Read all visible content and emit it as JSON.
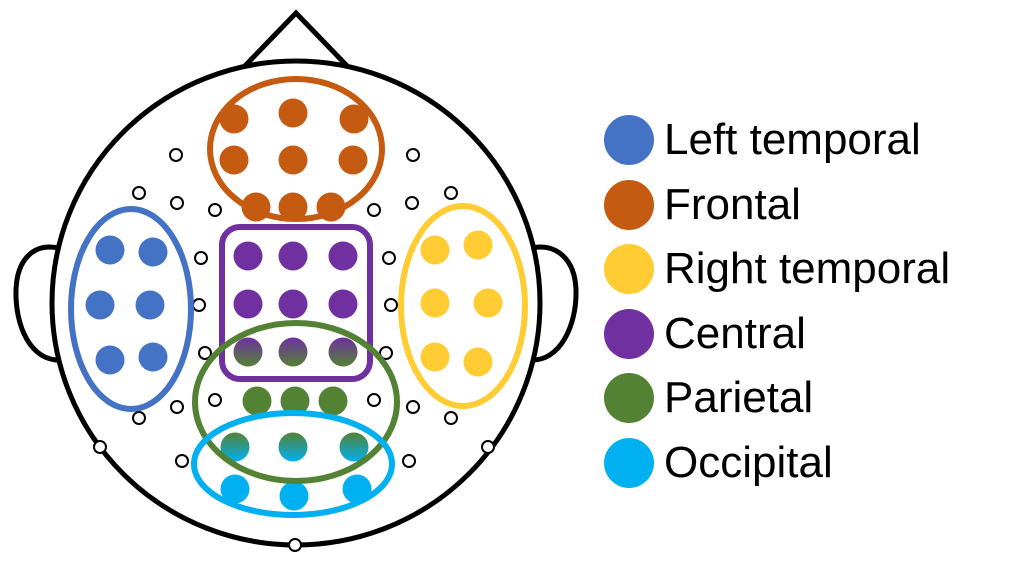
{
  "regions": [
    {
      "key": "left_temporal",
      "label": "Left temporal",
      "color": "#4472C4"
    },
    {
      "key": "frontal",
      "label": "Frontal",
      "color": "#C55A11"
    },
    {
      "key": "right_temporal",
      "label": "Right temporal",
      "color": "#FFCC33"
    },
    {
      "key": "central",
      "label": "Central",
      "color": "#7030A0"
    },
    {
      "key": "parietal",
      "label": "Parietal",
      "color": "#548235"
    },
    {
      "key": "occipital",
      "label": "Occipital",
      "color": "#00B0F0"
    }
  ],
  "head": {
    "outline_color": "#000000"
  }
}
